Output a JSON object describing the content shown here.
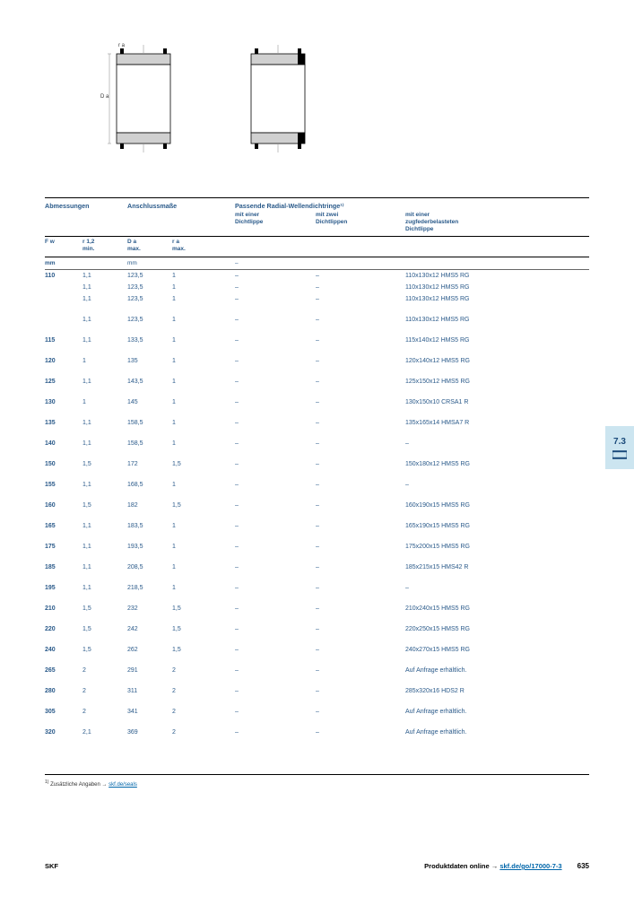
{
  "diagram": {
    "label_r": "r a",
    "label_D": "D a"
  },
  "headers": {
    "group1": "Abmessungen",
    "group2": "Anschlussmaße",
    "group3": "Passende Radial-Wellendichtringe¹⁾",
    "sub3a": "mit einer\nDichtlippe",
    "sub3b": "mit zwei\nDichtlippen",
    "sub3c": "mit einer\nzugfederbelasteten\nDichtlippe",
    "Fw": "F w",
    "r12": "r 1,2\nmin.",
    "Da": "D a\nmax.",
    "ra": "r a\nmax.",
    "unit_mm": "mm",
    "unit_dash": "–"
  },
  "rows": [
    {
      "Fw": "110",
      "r12": "1,1",
      "Da": "123,5",
      "ra": "1",
      "c5": "–",
      "c6": "–",
      "c7": "110x130x12 HMS5 RG",
      "spaced": false
    },
    {
      "Fw": "",
      "r12": "1,1",
      "Da": "123,5",
      "ra": "1",
      "c5": "–",
      "c6": "–",
      "c7": "110x130x12 HMS5 RG",
      "spaced": false
    },
    {
      "Fw": "",
      "r12": "1,1",
      "Da": "123,5",
      "ra": "1",
      "c5": "–",
      "c6": "–",
      "c7": "110x130x12 HMS5 RG",
      "spaced": false
    },
    {
      "Fw": "",
      "r12": "1,1",
      "Da": "123,5",
      "ra": "1",
      "c5": "–",
      "c6": "–",
      "c7": "110x130x12 HMS5 RG",
      "spaced": true
    },
    {
      "Fw": "115",
      "r12": "1,1",
      "Da": "133,5",
      "ra": "1",
      "c5": "–",
      "c6": "–",
      "c7": "115x140x12 HMS5 RG",
      "spaced": true
    },
    {
      "Fw": "120",
      "r12": "1",
      "Da": "135",
      "ra": "1",
      "c5": "–",
      "c6": "–",
      "c7": "120x140x12 HMS5 RG",
      "spaced": true
    },
    {
      "Fw": "125",
      "r12": "1,1",
      "Da": "143,5",
      "ra": "1",
      "c5": "–",
      "c6": "–",
      "c7": "125x150x12 HMS5 RG",
      "spaced": true
    },
    {
      "Fw": "130",
      "r12": "1",
      "Da": "145",
      "ra": "1",
      "c5": "–",
      "c6": "–",
      "c7": "130x150x10 CRSA1 R",
      "spaced": true
    },
    {
      "Fw": "135",
      "r12": "1,1",
      "Da": "158,5",
      "ra": "1",
      "c5": "–",
      "c6": "–",
      "c7": "135x165x14 HMSA7 R",
      "spaced": true
    },
    {
      "Fw": "140",
      "r12": "1,1",
      "Da": "158,5",
      "ra": "1",
      "c5": "–",
      "c6": "–",
      "c7": "–",
      "spaced": true
    },
    {
      "Fw": "150",
      "r12": "1,5",
      "Da": "172",
      "ra": "1,5",
      "c5": "–",
      "c6": "–",
      "c7": "150x180x12 HMS5 RG",
      "spaced": true
    },
    {
      "Fw": "155",
      "r12": "1,1",
      "Da": "168,5",
      "ra": "1",
      "c5": "–",
      "c6": "–",
      "c7": "–",
      "spaced": true
    },
    {
      "Fw": "160",
      "r12": "1,5",
      "Da": "182",
      "ra": "1,5",
      "c5": "–",
      "c6": "–",
      "c7": "160x190x15 HMS5 RG",
      "spaced": true
    },
    {
      "Fw": "165",
      "r12": "1,1",
      "Da": "183,5",
      "ra": "1",
      "c5": "–",
      "c6": "–",
      "c7": "165x190x15 HMS5 RG",
      "spaced": true
    },
    {
      "Fw": "175",
      "r12": "1,1",
      "Da": "193,5",
      "ra": "1",
      "c5": "–",
      "c6": "–",
      "c7": "175x200x15 HMS5 RG",
      "spaced": true
    },
    {
      "Fw": "185",
      "r12": "1,1",
      "Da": "208,5",
      "ra": "1",
      "c5": "–",
      "c6": "–",
      "c7": "185x215x15 HMS42 R",
      "spaced": true
    },
    {
      "Fw": "195",
      "r12": "1,1",
      "Da": "218,5",
      "ra": "1",
      "c5": "–",
      "c6": "–",
      "c7": "–",
      "spaced": true
    },
    {
      "Fw": "210",
      "r12": "1,5",
      "Da": "232",
      "ra": "1,5",
      "c5": "–",
      "c6": "–",
      "c7": "210x240x15 HMS5 RG",
      "spaced": true
    },
    {
      "Fw": "220",
      "r12": "1,5",
      "Da": "242",
      "ra": "1,5",
      "c5": "–",
      "c6": "–",
      "c7": "220x250x15 HMS5 RG",
      "spaced": true
    },
    {
      "Fw": "240",
      "r12": "1,5",
      "Da": "262",
      "ra": "1,5",
      "c5": "–",
      "c6": "–",
      "c7": "240x270x15 HMS5 RG",
      "spaced": true
    },
    {
      "Fw": "265",
      "r12": "2",
      "Da": "291",
      "ra": "2",
      "c5": "–",
      "c6": "–",
      "c7": "Auf Anfrage erhältlich.",
      "spaced": true
    },
    {
      "Fw": "280",
      "r12": "2",
      "Da": "311",
      "ra": "2",
      "c5": "–",
      "c6": "–",
      "c7": "285x320x16 HDS2 R",
      "spaced": true
    },
    {
      "Fw": "305",
      "r12": "2",
      "Da": "341",
      "ra": "2",
      "c5": "–",
      "c6": "–",
      "c7": "Auf Anfrage erhältlich.",
      "spaced": true
    },
    {
      "Fw": "320",
      "r12": "2,1",
      "Da": "369",
      "ra": "2",
      "c5": "–",
      "c6": "–",
      "c7": "Auf Anfrage erhältlich.",
      "spaced": true
    }
  ],
  "footnote": {
    "text_pre": "Zusätzliche Angaben → ",
    "link": "skf.de/seals"
  },
  "footer": {
    "brand": "SKF",
    "text_pre": "Produktdaten online → ",
    "link": "skf.de/go/17000-7-3",
    "page": "635"
  },
  "tab": {
    "num": "7.3"
  }
}
